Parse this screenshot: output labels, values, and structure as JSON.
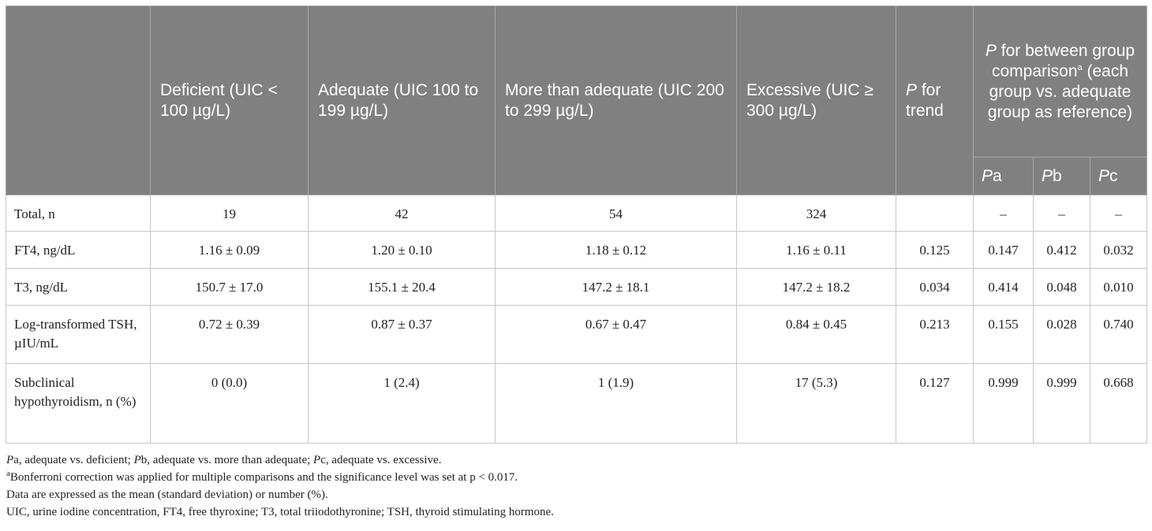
{
  "table": {
    "headers": {
      "blank": "",
      "deficient": "Deficient (UIC < 100 µg/L)",
      "adequate": "Adequate (UIC 100 to 199 µg/L)",
      "more_than_adequate": "More than adequate (UIC 200 to 299 µg/L)",
      "excessive": "Excessive (UIC ≥ 300 µg/L)",
      "p_trend_italic": "P",
      "p_trend_rest": " for trend",
      "between_italic": "P",
      "between_rest": " for between group comparison",
      "between_sup": "a",
      "between_tail": " (each group vs. adequate group as reference)",
      "pa_italic": "P",
      "pa_rest": "a",
      "pb_italic": "P",
      "pb_rest": "b",
      "pc_italic": "P",
      "pc_rest": "c"
    },
    "rows": [
      {
        "label": "Total, n",
        "deficient": "19",
        "adequate": "42",
        "more": "54",
        "excessive": "324",
        "p_trend": "",
        "pa": "–",
        "pb": "–",
        "pc": "–"
      },
      {
        "label": "FT4, ng/dL",
        "deficient": "1.16 ± 0.09",
        "adequate": "1.20 ± 0.10",
        "more": "1.18 ± 0.12",
        "excessive": "1.16 ± 0.11",
        "p_trend": "0.125",
        "pa": "0.147",
        "pb": "0.412",
        "pc": "0.032"
      },
      {
        "label": "T3, ng/dL",
        "deficient": "150.7 ± 17.0",
        "adequate": "155.1 ± 20.4",
        "more": "147.2 ± 18.1",
        "excessive": "147.2 ± 18.2",
        "p_trend": "0.034",
        "pa": "0.414",
        "pb": "0.048",
        "pc": "0.010"
      },
      {
        "label": "Log-transformed TSH, µIU/mL",
        "deficient": "0.72 ± 0.39",
        "adequate": "0.87 ± 0.37",
        "more": "0.67 ± 0.47",
        "excessive": "0.84 ± 0.45",
        "p_trend": "0.213",
        "pa": "0.155",
        "pb": "0.028",
        "pc": "0.740"
      },
      {
        "label": "Subclinical hypothyroidism, n (%)",
        "deficient": "0 (0.0)",
        "adequate": "1 (2.4)",
        "more": "1 (1.9)",
        "excessive": "17 (5.3)",
        "p_trend": "0.127",
        "pa": "0.999",
        "pb": "0.999",
        "pc": "0.668"
      }
    ]
  },
  "notes": {
    "line1": {
      "p1": "P",
      "t1": "a, adequate vs. deficient; ",
      "p2": "P",
      "t2": "b, adequate vs. more than adequate; ",
      "p3": "P",
      "t3": "c, adequate vs. excessive."
    },
    "line2_sup": "a",
    "line2_text": "Bonferroni correction was applied for multiple comparisons and the significance level was set at p < 0.017.",
    "line3": "Data are expressed as the mean (standard deviation) or number (%).",
    "line4": "UIC, urine iodine concentration, FT4, free thyroxine; T3, total triiodothyronine; TSH, thyroid stimulating hormone."
  }
}
